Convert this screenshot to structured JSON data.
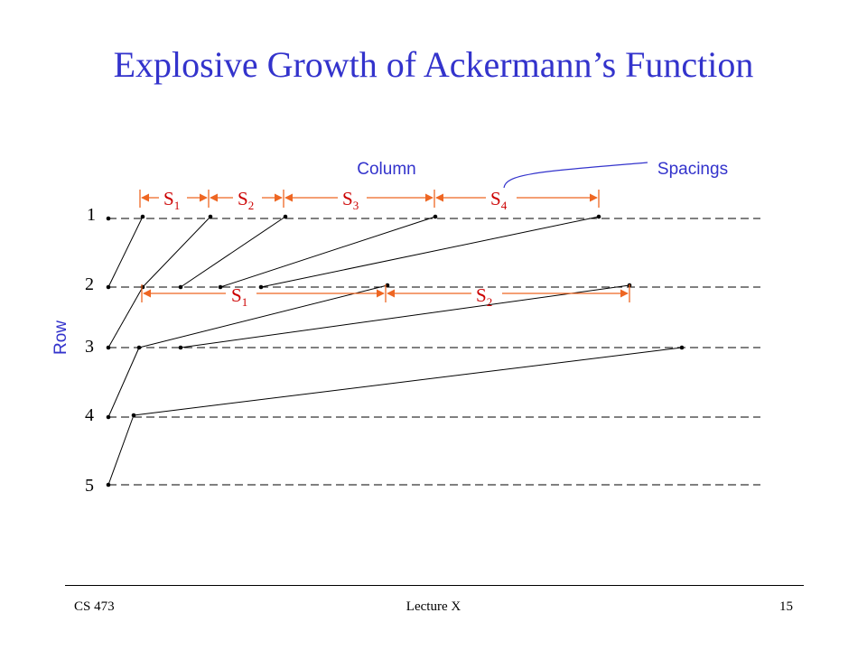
{
  "title": "Explosive Growth of Ackermann’s Function",
  "labels": {
    "column": "Column",
    "spacings": "Spacings",
    "row": "Row"
  },
  "rows": [
    "1",
    "2",
    "3",
    "4",
    "5"
  ],
  "spacing_labels": {
    "row1": [
      {
        "base": "S",
        "sub": "1"
      },
      {
        "base": "S",
        "sub": "2"
      },
      {
        "base": "S",
        "sub": "3"
      },
      {
        "base": "S",
        "sub": "4"
      }
    ],
    "row2": [
      {
        "base": "S",
        "sub": "1"
      },
      {
        "base": "S",
        "sub": "2"
      }
    ]
  },
  "footer": {
    "course": "CS 473",
    "lecture": "Lecture X",
    "page": "15"
  },
  "colors": {
    "title": "#3333cc",
    "labels": "#3333cc",
    "spacing_label": "#cc0000",
    "spacing_arrow": "#ee6622",
    "lines": "#000000"
  }
}
